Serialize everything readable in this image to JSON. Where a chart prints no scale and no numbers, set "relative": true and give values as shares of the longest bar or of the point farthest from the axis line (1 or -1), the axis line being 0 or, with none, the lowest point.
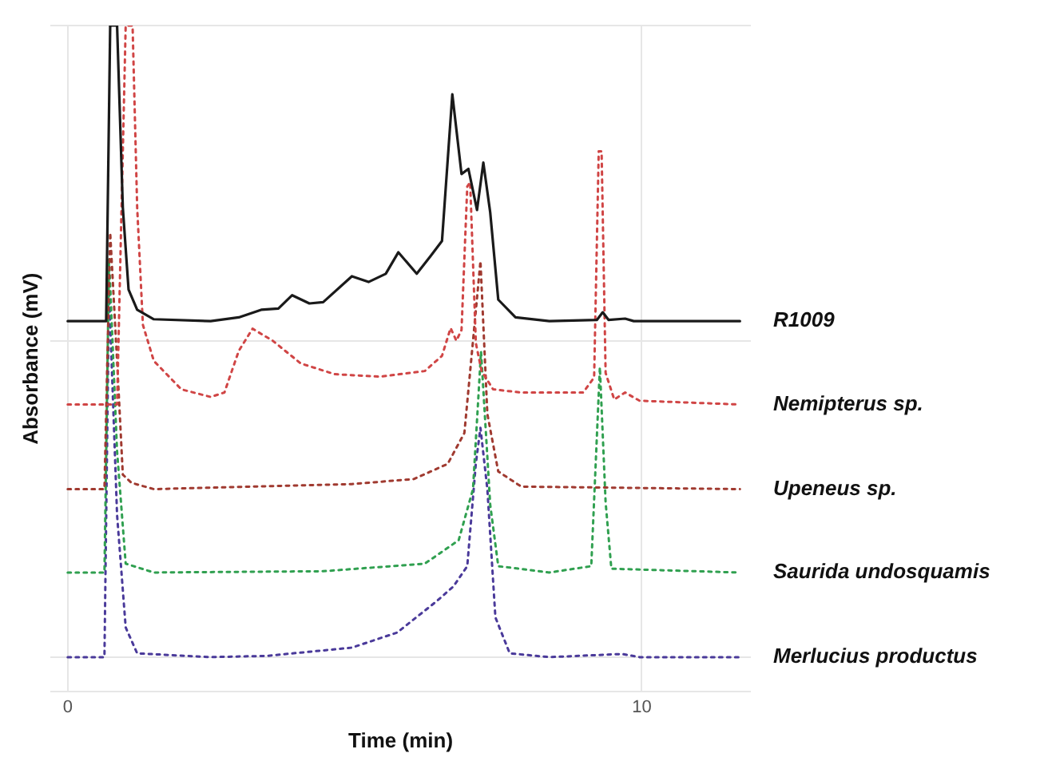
{
  "chart_data": {
    "type": "line",
    "relative": true,
    "xlabel": "Time (min)",
    "ylabel": "Absorbance (mV)",
    "xlim": [
      -0.3,
      11.9
    ],
    "xticks": [
      0,
      10
    ],
    "grid": true,
    "legend": false,
    "marker": "none",
    "series": [
      {
        "name": "R1009",
        "color": "#1a1a1a",
        "line_style": "solid",
        "x": [
          0,
          0.67,
          0.74,
          0.86,
          0.96,
          1.06,
          1.21,
          1.5,
          2.49,
          2.98,
          3.37,
          3.67,
          3.91,
          4.21,
          4.45,
          4.95,
          5.24,
          5.54,
          5.76,
          6.08,
          6.32,
          6.52,
          6.7,
          6.86,
          6.98,
          7.13,
          7.24,
          7.36,
          7.5,
          7.8,
          8.39,
          9.22,
          9.32,
          9.42,
          9.71,
          9.86,
          11.71
        ],
        "values": [
          0.532,
          0.532,
          1,
          1,
          0.712,
          0.582,
          0.55,
          0.535,
          0.532,
          0.538,
          0.55,
          0.552,
          0.573,
          0.56,
          0.562,
          0.603,
          0.594,
          0.607,
          0.641,
          0.607,
          0.635,
          0.659,
          0.891,
          0.765,
          0.773,
          0.708,
          0.783,
          0.704,
          0.566,
          0.538,
          0.532,
          0.534,
          0.546,
          0.534,
          0.536,
          0.532,
          0.532
        ]
      },
      {
        "name": "Nemipterus sp.",
        "color": "#d04545",
        "line_style": "dotted",
        "x": [
          0,
          0.67,
          0.86,
          1.01,
          1.13,
          1.21,
          1.31,
          1.5,
          1.98,
          2.49,
          2.73,
          2.98,
          3.22,
          3.57,
          4.06,
          4.65,
          5.44,
          6.22,
          6.52,
          6.67,
          6.77,
          6.86,
          6.96,
          7.01,
          7.11,
          7.21,
          7.41,
          7.9,
          8.98,
          9.17,
          9.25,
          9.3,
          9.37,
          9.52,
          9.71,
          9.96,
          11.71
        ],
        "values": [
          0.4,
          0.4,
          0.4,
          1,
          1,
          0.712,
          0.526,
          0.469,
          0.424,
          0.412,
          0.419,
          0.485,
          0.52,
          0.501,
          0.465,
          0.448,
          0.444,
          0.453,
          0.477,
          0.521,
          0.501,
          0.518,
          0.745,
          0.752,
          0.497,
          0.453,
          0.424,
          0.419,
          0.419,
          0.443,
          0.801,
          0.801,
          0.45,
          0.408,
          0.419,
          0.406,
          0.4
        ]
      },
      {
        "name": "Upeneus sp.",
        "color": "#a03a30",
        "line_style": "dotted",
        "x": [
          0,
          0.64,
          0.74,
          0.86,
          0.96,
          1.11,
          1.5,
          4.95,
          6.03,
          6.62,
          6.91,
          7.19,
          7.31,
          7.5,
          7.9,
          11.71
        ],
        "values": [
          0.266,
          0.266,
          0.672,
          0.469,
          0.289,
          0.276,
          0.266,
          0.274,
          0.282,
          0.306,
          0.355,
          0.627,
          0.385,
          0.294,
          0.27,
          0.266
        ]
      },
      {
        "name": "Saurida undosquamis",
        "color": "#30a050",
        "line_style": "dotted",
        "x": [
          0,
          0.64,
          0.72,
          0.86,
          1.01,
          1.5,
          4.45,
          6.22,
          6.81,
          7.06,
          7.2,
          7.36,
          7.5,
          8.39,
          9.12,
          9.27,
          9.37,
          9.47,
          11.68
        ],
        "values": [
          0.134,
          0.134,
          0.631,
          0.326,
          0.148,
          0.134,
          0.136,
          0.148,
          0.185,
          0.266,
          0.484,
          0.241,
          0.144,
          0.134,
          0.144,
          0.459,
          0.245,
          0.14,
          0.134
        ]
      },
      {
        "name": "Merlucius productus",
        "color": "#4a3a9a",
        "line_style": "dotted",
        "x": [
          0,
          0.64,
          0.72,
          0.86,
          1.01,
          1.21,
          2.49,
          3.47,
          4.95,
          5.74,
          6.42,
          6.72,
          6.96,
          7.11,
          7.19,
          7.31,
          7.45,
          7.7,
          8.39,
          9.66,
          9.96,
          11.71
        ],
        "values": [
          0,
          0,
          0.582,
          0.225,
          0.047,
          0.006,
          0,
          0.002,
          0.015,
          0.039,
          0.088,
          0.112,
          0.144,
          0.307,
          0.363,
          0.266,
          0.063,
          0.006,
          0,
          0.005,
          0,
          0
        ]
      }
    ]
  }
}
